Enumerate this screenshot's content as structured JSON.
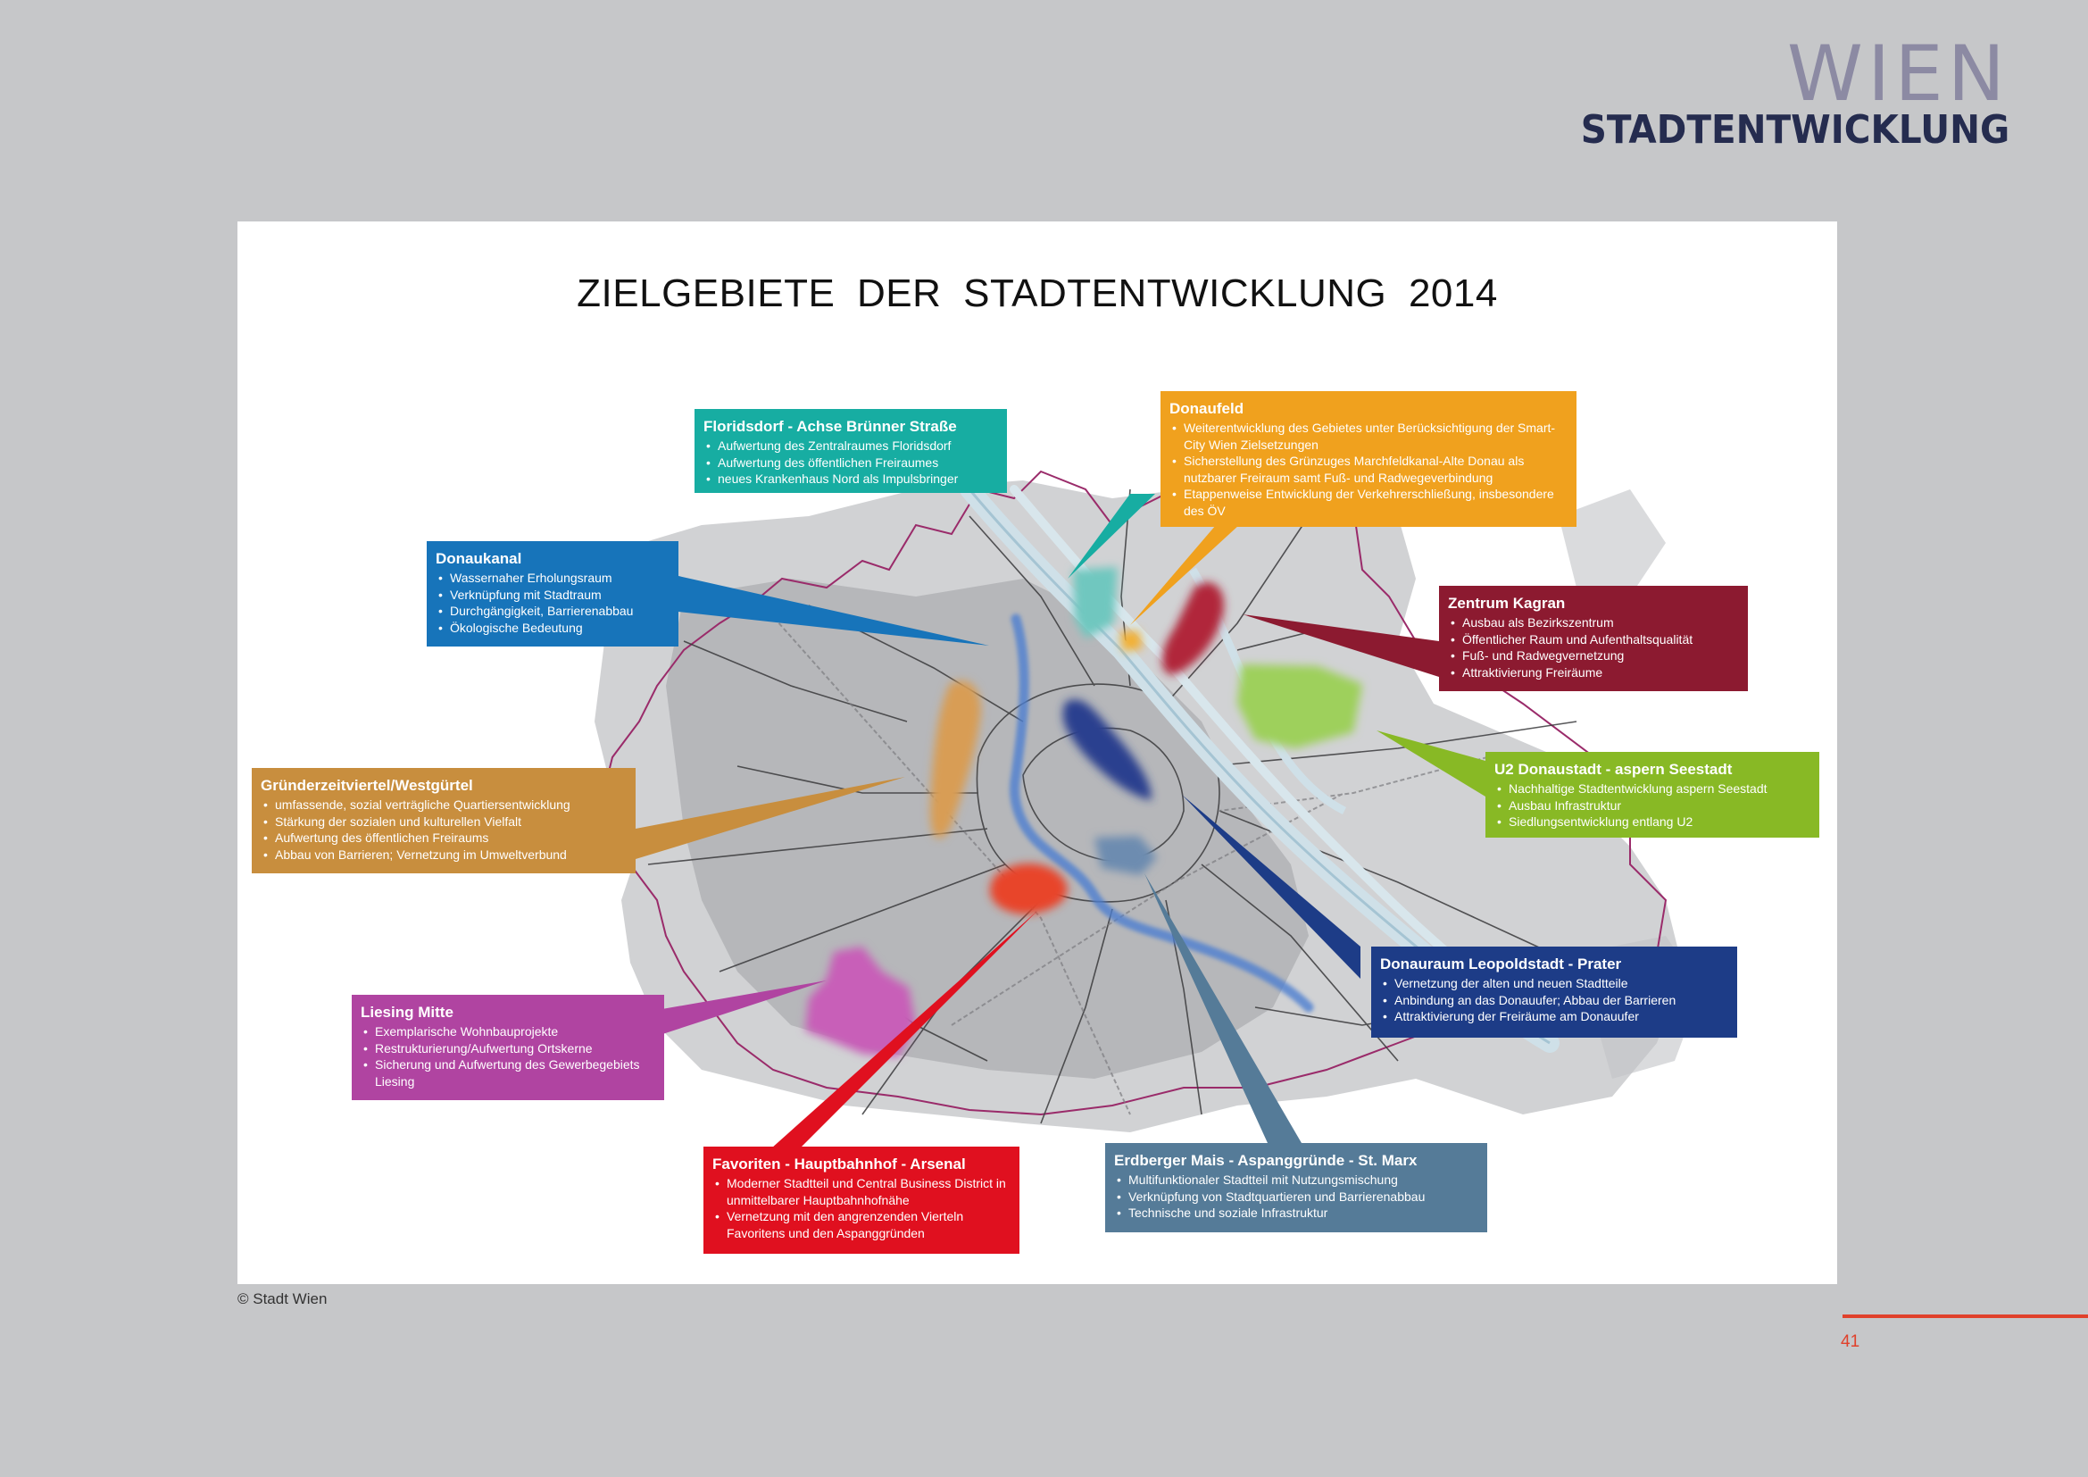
{
  "brand": {
    "wien": "WIEN",
    "sub": "STADTENTWICKLUNG"
  },
  "map": {
    "title": "ZIELGEBIETE DER STADTENTWICKLUNG 2014"
  },
  "callouts": [
    {
      "id": "floridsdorf",
      "title": "Floridsdorf - Achse Brünner Straße",
      "color": "#17ada2",
      "items": [
        "Aufwertung des Zentralraumes Floridsdorf",
        "Aufwertung des öffentlichen Freiraumes",
        "neues Krankenhaus Nord als Impulsbringer"
      ]
    },
    {
      "id": "donaufeld",
      "title": "Donaufeld",
      "color": "#f0a11e",
      "items": [
        "Weiterentwicklung des Gebietes unter Berücksichtigung der Smart-City Wien Zielsetzungen",
        "Sicherstellung des Grünzuges Marchfeldkanal-Alte Donau als nutzbarer Freiraum samt Fuß- und Radwegeverbindung",
        "Etappenweise Entwicklung der Verkehrerschließung, insbesondere des ÖV"
      ]
    },
    {
      "id": "donaukanal",
      "title": "Donaukanal",
      "color": "#1774ba",
      "items": [
        "Wassernaher Erholungsraum",
        "Verknüpfung mit Stadtraum",
        "Durchgängigkeit, Barrierenabbau",
        "Ökologische Bedeutung"
      ]
    },
    {
      "id": "kagran",
      "title": "Zentrum Kagran",
      "color": "#8c1a30",
      "items": [
        "Ausbau als Bezirkszentrum",
        "Öffentlicher Raum und Aufenthaltsqualität",
        "Fuß- und Radwegvernetzung",
        "Attraktivierung Freiräume"
      ]
    },
    {
      "id": "seestadt",
      "title": "U2 Donaustadt - aspern Seestadt",
      "color": "#88b925",
      "items": [
        "Nachhaltige Stadtentwicklung aspern Seestadt",
        "Ausbau Infrastruktur",
        "Siedlungsentwicklung entlang U2"
      ]
    },
    {
      "id": "gruenderzeit",
      "title": "Gründerzeitviertel/Westgürtel",
      "color": "#c88e3e",
      "items": [
        "umfassende, sozial verträgliche Quartiersentwicklung",
        "Stärkung der sozialen und kulturellen Vielfalt",
        "Aufwertung des öffentlichen Freiraums",
        "Abbau von Barrieren; Vernetzung im Umweltverbund"
      ]
    },
    {
      "id": "leopoldstadt",
      "title": "Donauraum Leopoldstadt - Prater",
      "color": "#1d3c87",
      "items": [
        "Vernetzung der alten und neuen Stadtteile",
        "Anbindung an das Donauufer; Abbau der Barrieren",
        "Attraktivierung der Freiräume am Donauufer"
      ]
    },
    {
      "id": "liesing",
      "title": "Liesing Mitte",
      "color": "#b044a1",
      "items": [
        "Exemplarische Wohnbauprojekte",
        "Restrukturierung/Aufwertung Ortskerne",
        "Sicherung und Aufwertung des Gewerbegebiets Liesing"
      ]
    },
    {
      "id": "favoriten",
      "title": "Favoriten - Hauptbahnhof - Arsenal",
      "color": "#e0101f",
      "items": [
        "Moderner Stadtteil und Central Business District in unmittelbarer Hauptbahnhofnähe",
        "Vernetzung mit den angrenzenden Vierteln Favoritens und den Aspanggründen"
      ]
    },
    {
      "id": "erdberg",
      "title": "Erdberger Mais - Aspanggründe - St. Marx",
      "color": "#557b98",
      "items": [
        "Multifunktionaler Stadtteil mit Nutzungsmischung",
        "Verknüpfung von Stadtquartieren und Barrierenabbau",
        "Technische und soziale Infrastruktur"
      ]
    }
  ],
  "footer": {
    "copyright": "© Stadt Wien",
    "page": "41"
  }
}
